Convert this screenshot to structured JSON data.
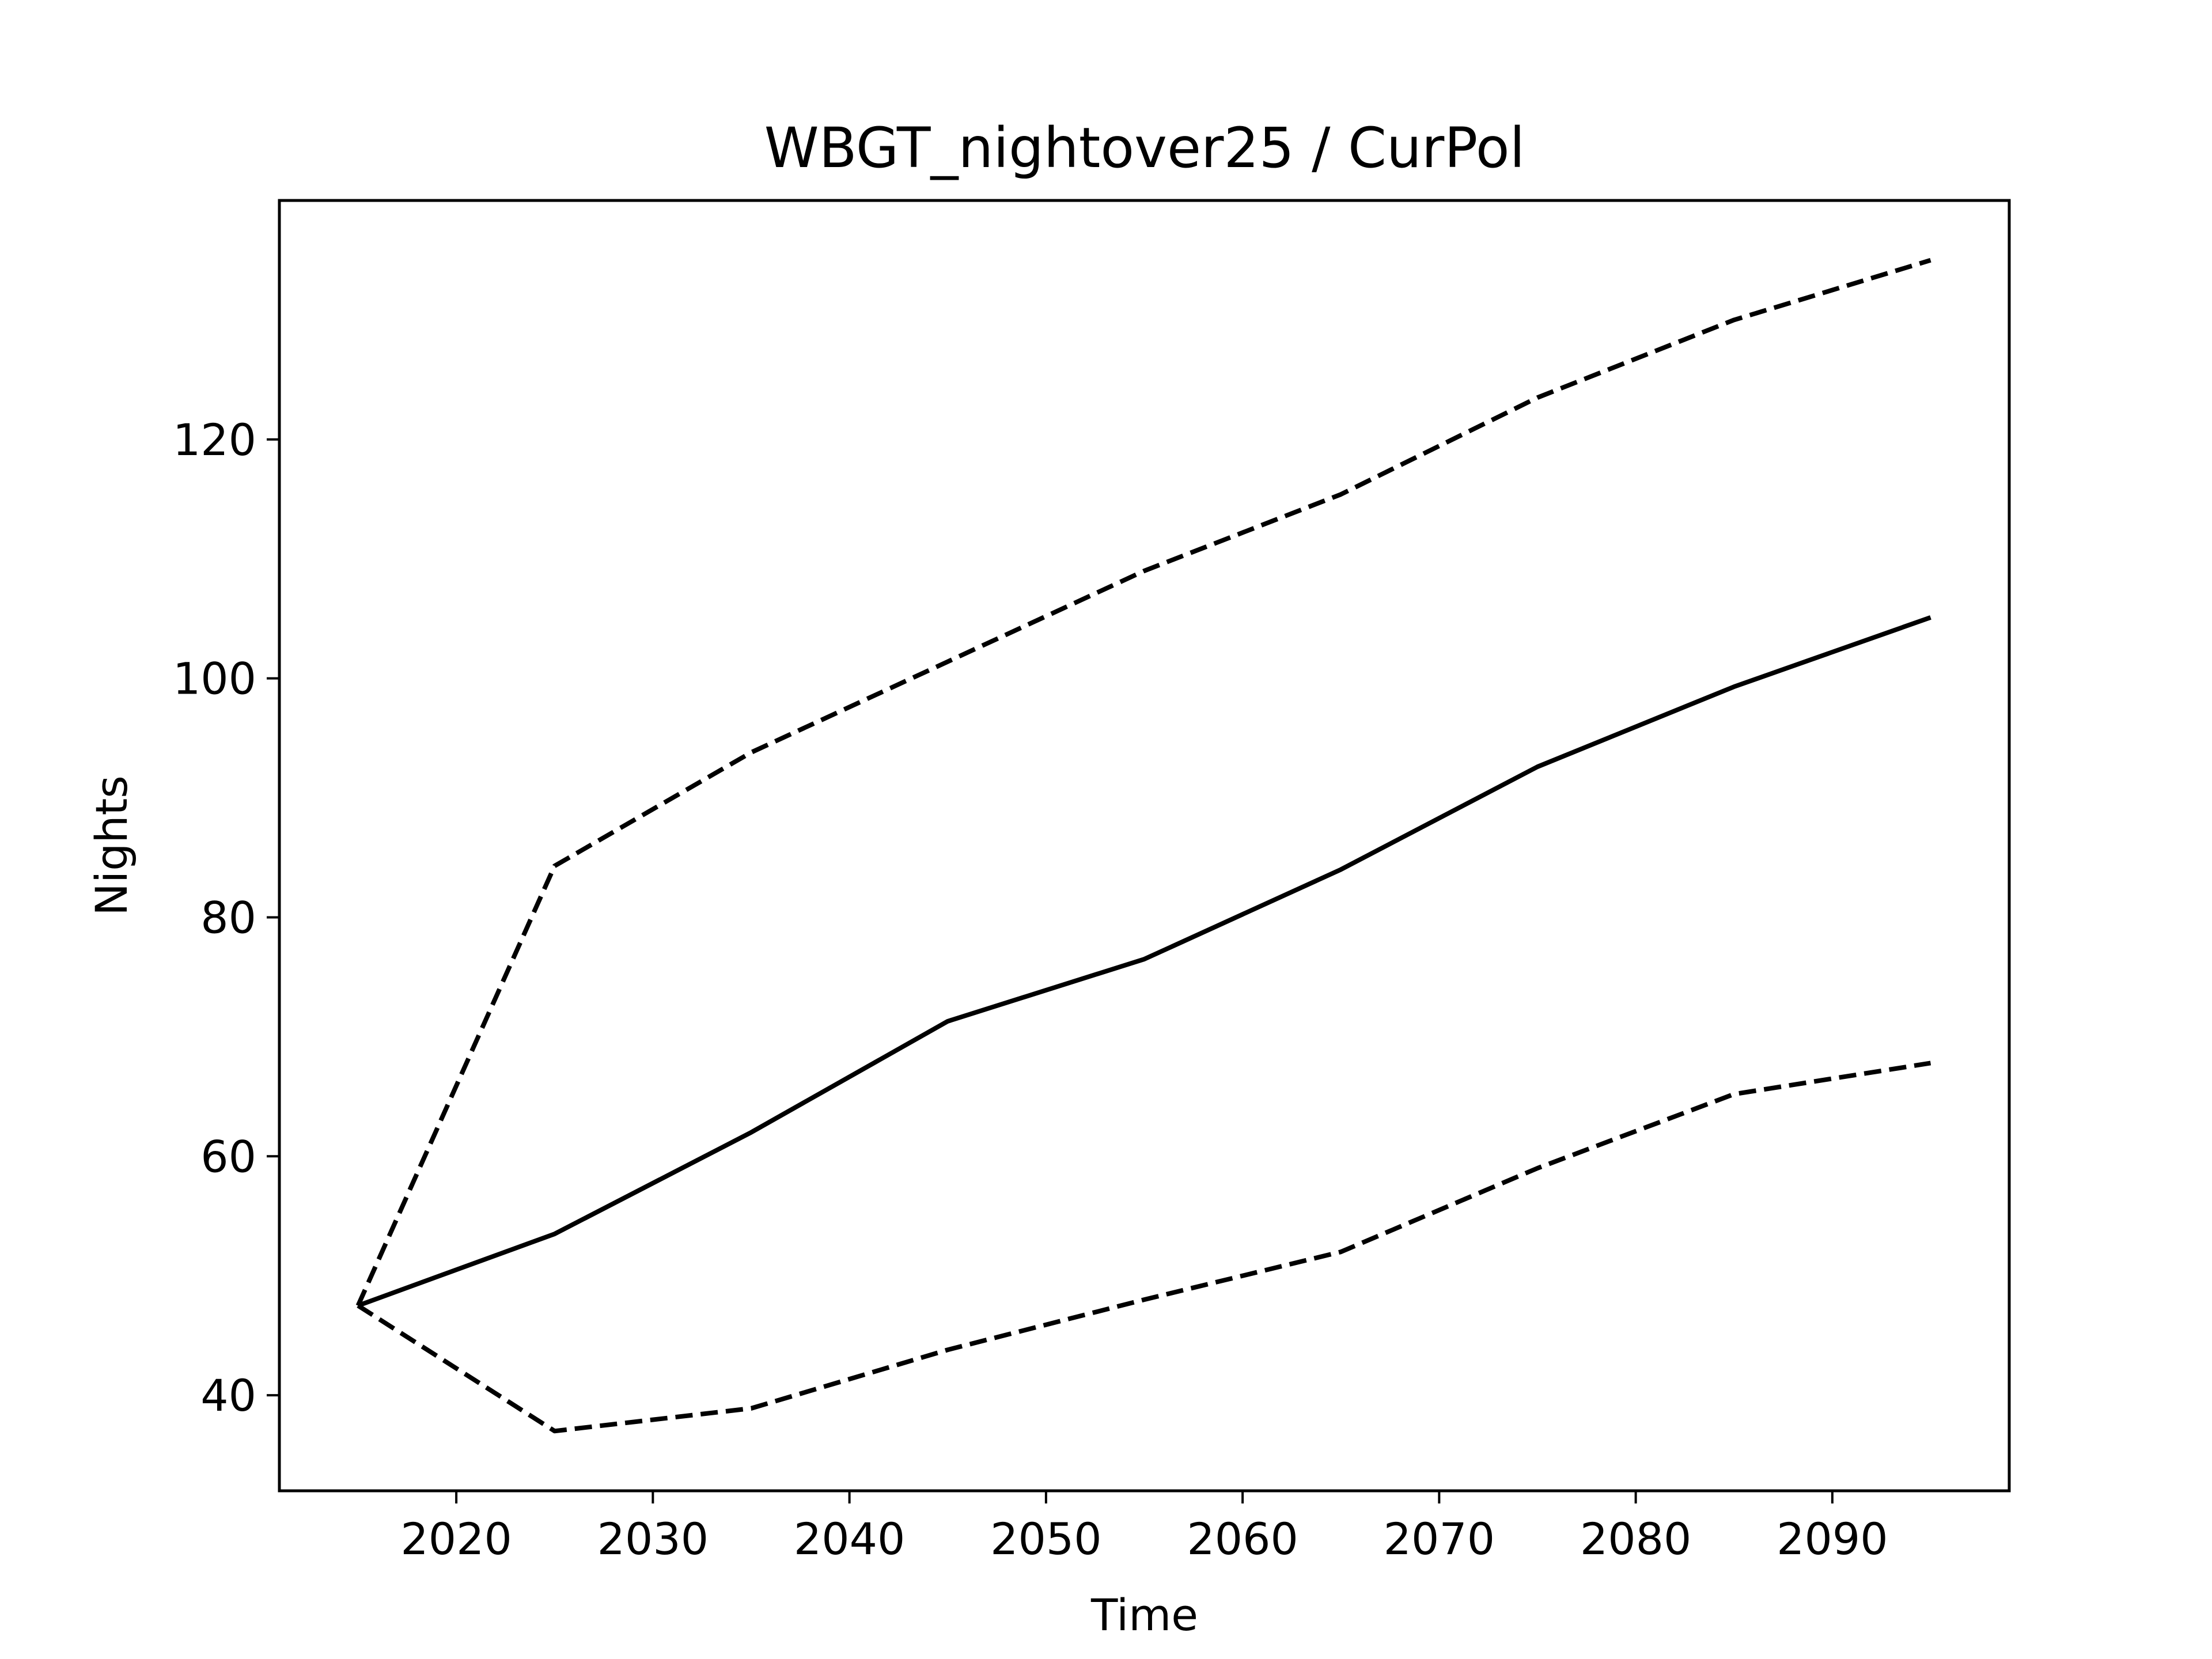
{
  "chart_data": {
    "type": "line",
    "title": "WBGT_nightover25 / CurPol",
    "xlabel": "Time",
    "ylabel": "Nights",
    "xlim": [
      2011,
      2099
    ],
    "ylim": [
      32,
      140
    ],
    "xticks": [
      2020,
      2030,
      2040,
      2050,
      2060,
      2070,
      2080,
      2090
    ],
    "yticks": [
      40,
      60,
      80,
      100,
      120
    ],
    "grid": false,
    "legend": "none",
    "x": [
      2015,
      2025,
      2035,
      2045,
      2055,
      2065,
      2075,
      2085,
      2095
    ],
    "series": [
      {
        "style": "solid",
        "color": "#000000",
        "values": [
          47.5,
          53.5,
          62.0,
          71.3,
          76.5,
          84.0,
          92.6,
          99.3,
          105.1
        ]
      },
      {
        "style": "dashed",
        "color": "#000000",
        "values": [
          47.5,
          84.3,
          93.8,
          101.4,
          109.0,
          115.4,
          123.5,
          130.0,
          135.0
        ]
      },
      {
        "style": "dashed",
        "color": "#000000",
        "values": [
          47.5,
          37.0,
          38.9,
          43.8,
          48.0,
          52.0,
          59.0,
          65.2,
          67.8
        ]
      }
    ]
  }
}
